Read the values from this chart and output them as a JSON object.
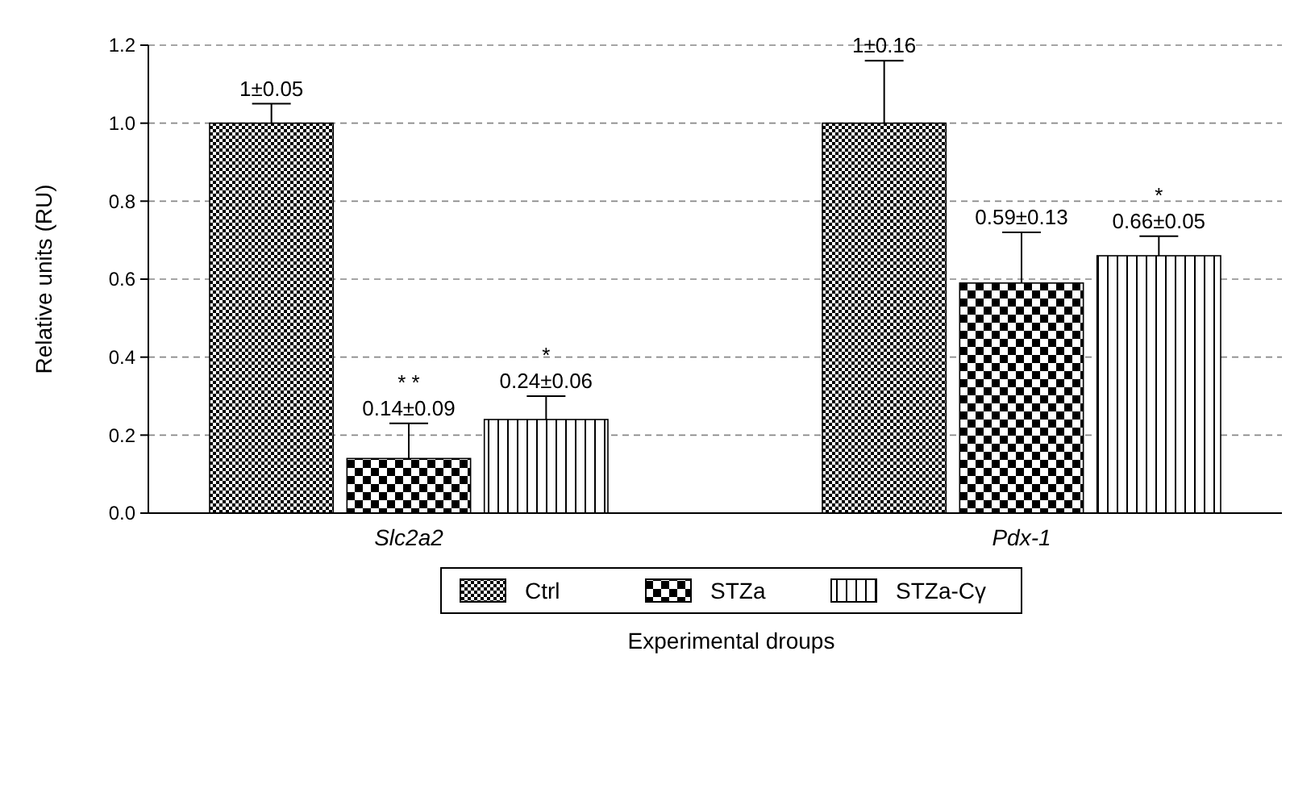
{
  "chart_data": {
    "type": "bar",
    "xlabel": "Experimental droups",
    "ylabel": "Relative units (RU)",
    "categories": [
      "Slc2a2",
      "Pdx-1"
    ],
    "series": [
      {
        "name": "Ctrl",
        "color": "#000000",
        "values": [
          1,
          1
        ],
        "errors": [
          [
            1,
            1.05
          ],
          [
            1,
            1.16
          ]
        ],
        "value_labels": [
          "1±0.05",
          "1±0.16"
        ]
      },
      {
        "name": "STZa",
        "color": "#000000",
        "values": [
          0.14,
          0.59
        ],
        "errors": [
          [
            0.14,
            0.23
          ],
          [
            0.59,
            0.72
          ]
        ],
        "value_labels": [
          "* *\n0.14±0.09",
          "0.59±0.13"
        ]
      },
      {
        "name": "STZa-Cγ",
        "color": "#000000",
        "values": [
          0.24,
          0.66
        ],
        "errors": [
          [
            0.24,
            0.3
          ],
          [
            0.66,
            0.71
          ]
        ],
        "value_labels": [
          "*\n0.24±0.06",
          "*\n0.66±0.05"
        ]
      }
    ],
    "ylim": [
      0,
      1.2
    ],
    "yticks": [
      {
        "value": 0,
        "label": "0.0"
      },
      {
        "value": 0.2,
        "label": "0.2"
      },
      {
        "value": 0.4,
        "label": "0.4"
      },
      {
        "value": 0.6,
        "label": "0.6"
      },
      {
        "value": 0.8,
        "label": "0.8"
      },
      {
        "value": 1,
        "label": "1.0"
      },
      {
        "value": 1.2,
        "label": "1.2"
      }
    ],
    "grid": "y",
    "legend": "bottom"
  }
}
